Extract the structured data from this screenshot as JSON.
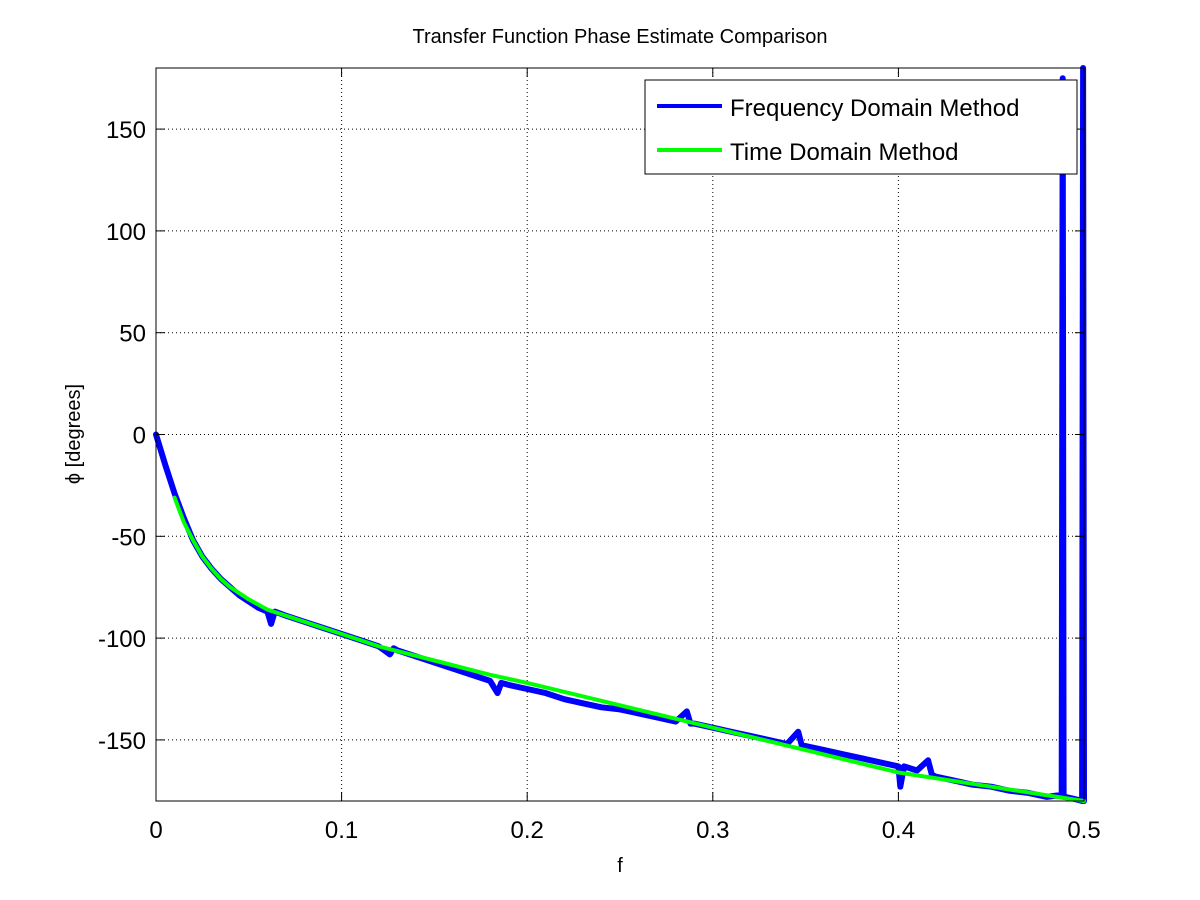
{
  "chart_data": {
    "type": "line",
    "title": "Transfer Function Phase Estimate Comparison",
    "xlabel": "f",
    "ylabel": "ϕ [degrees]",
    "xlim": [
      0,
      0.5
    ],
    "ylim": [
      -180,
      180
    ],
    "xticks": [
      0,
      0.1,
      0.2,
      0.3,
      0.4,
      0.5
    ],
    "xtick_labels": [
      "0",
      "0.1",
      "0.2",
      "0.3",
      "0.4",
      "0.5"
    ],
    "yticks": [
      -150,
      -100,
      -50,
      0,
      50,
      100,
      150
    ],
    "ytick_labels": [
      "-150",
      "-100",
      "-50",
      "0",
      "50",
      "100",
      "150"
    ],
    "grid": true,
    "legend_position": "top-right",
    "series": [
      {
        "name": "Frequency Domain Method",
        "color": "#0000ff",
        "x": [
          0,
          0.005,
          0.01,
          0.015,
          0.02,
          0.025,
          0.03,
          0.035,
          0.04,
          0.045,
          0.05,
          0.055,
          0.06,
          0.062,
          0.064,
          0.07,
          0.08,
          0.09,
          0.1,
          0.11,
          0.12,
          0.126,
          0.128,
          0.13,
          0.14,
          0.15,
          0.16,
          0.17,
          0.18,
          0.184,
          0.186,
          0.19,
          0.2,
          0.21,
          0.22,
          0.23,
          0.24,
          0.25,
          0.26,
          0.27,
          0.28,
          0.286,
          0.288,
          0.29,
          0.3,
          0.31,
          0.32,
          0.33,
          0.34,
          0.346,
          0.348,
          0.35,
          0.36,
          0.37,
          0.38,
          0.39,
          0.4,
          0.401,
          0.403,
          0.41,
          0.416,
          0.418,
          0.42,
          0.43,
          0.44,
          0.45,
          0.46,
          0.47,
          0.48,
          0.488,
          0.4885,
          0.489,
          0.49,
          0.495,
          0.499,
          0.4995,
          0.5
        ],
        "y": [
          0,
          -15,
          -29,
          -41,
          -52,
          -60,
          -66,
          -71,
          -75,
          -79,
          -82,
          -85,
          -87,
          -93,
          -87,
          -89,
          -92,
          -95,
          -98,
          -101,
          -104,
          -108,
          -105,
          -106,
          -109,
          -112,
          -115,
          -118,
          -121,
          -127,
          -122,
          -123,
          -125,
          -127,
          -130,
          -132,
          -134,
          -135,
          -137,
          -139,
          -141,
          -136,
          -142,
          -142,
          -144,
          -146,
          -148,
          -150,
          -152,
          -146,
          -153,
          -153,
          -155,
          -157,
          -159,
          -161,
          -163,
          -173,
          -163,
          -165,
          -160,
          -167,
          -168,
          -170,
          -172,
          -173,
          -175,
          -176,
          -178,
          -177,
          175,
          -178,
          -178,
          -179,
          -180,
          180,
          -180
        ]
      },
      {
        "name": "Time Domain Method",
        "color": "#00ff00",
        "x": [
          0.01,
          0.015,
          0.02,
          0.025,
          0.03,
          0.035,
          0.04,
          0.05,
          0.06,
          0.07,
          0.08,
          0.1,
          0.12,
          0.15,
          0.18,
          0.2,
          0.25,
          0.3,
          0.35,
          0.4,
          0.45,
          0.5
        ],
        "y": [
          -31,
          -43,
          -52,
          -60,
          -66,
          -71,
          -75,
          -81,
          -86,
          -89,
          -92,
          -98,
          -104,
          -111,
          -118,
          -122,
          -133,
          -144,
          -155,
          -166,
          -173,
          -180
        ]
      }
    ]
  }
}
